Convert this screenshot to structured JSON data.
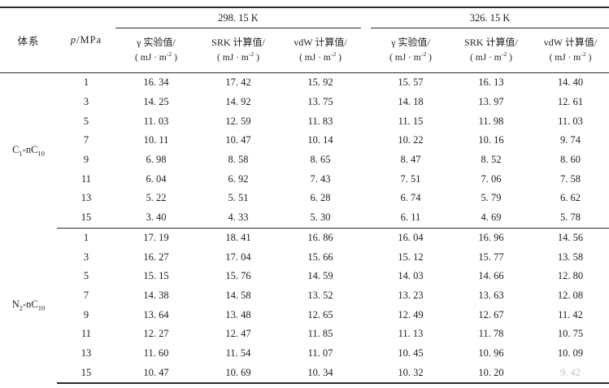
{
  "page": {
    "background": "#ffffff",
    "text_color": "#1d1d1d",
    "rule_color": "#2b2b2b"
  },
  "table": {
    "headers": {
      "system": "体系",
      "pressure": {
        "symbol": "p",
        "unit": "/MPa"
      }
    },
    "temp_groups": [
      {
        "label": "298. 15 K"
      },
      {
        "label": "326. 15 K"
      }
    ],
    "measure_cols": [
      {
        "title": "γ 实验值/"
      },
      {
        "title": "SRK 计算值/"
      },
      {
        "title": "vdW 计算值/"
      }
    ],
    "unit": {
      "pre": "( mJ · m",
      "sup": "-2",
      "post": " )"
    },
    "blocks": [
      {
        "system": {
          "pre": "C",
          "sub1": "1",
          "mid": "-nC",
          "sub2": "10"
        },
        "rows": [
          {
            "p": "1",
            "values": [
              "16. 34",
              "17. 42",
              "15. 92",
              "15. 57",
              "16. 13",
              "14. 40"
            ]
          },
          {
            "p": "3",
            "values": [
              "14. 25",
              "14. 92",
              "13. 75",
              "14. 18",
              "13. 97",
              "12. 61"
            ]
          },
          {
            "p": "5",
            "values": [
              "11. 03",
              "12. 59",
              "11. 83",
              "11. 15",
              "11. 98",
              "11. 03"
            ]
          },
          {
            "p": "7",
            "values": [
              "10. 11",
              "10. 47",
              "10. 14",
              "10. 22",
              "10. 16",
              "9. 74"
            ]
          },
          {
            "p": "9",
            "values": [
              "6. 98",
              "8. 58",
              "8. 65",
              "8. 47",
              "8. 52",
              "8. 60"
            ]
          },
          {
            "p": "11",
            "values": [
              "6. 04",
              "6. 92",
              "7. 43",
              "7. 51",
              "7. 06",
              "7. 58"
            ]
          },
          {
            "p": "13",
            "values": [
              "5. 22",
              "5. 51",
              "6. 28",
              "6. 74",
              "5. 79",
              "6. 62"
            ]
          },
          {
            "p": "15",
            "values": [
              "3. 40",
              "4. 33",
              "5. 30",
              "6. 11",
              "4. 69",
              "5. 78"
            ]
          }
        ]
      },
      {
        "system": {
          "pre": "N",
          "sub1": "2",
          "mid": "-nC",
          "sub2": "10"
        },
        "rows": [
          {
            "p": "1",
            "values": [
              "17. 19",
              "18. 41",
              "16. 86",
              "16. 04",
              "16. 96",
              "14. 56"
            ]
          },
          {
            "p": "3",
            "values": [
              "16. 27",
              "17. 04",
              "15. 66",
              "15. 12",
              "15. 77",
              "13. 58"
            ]
          },
          {
            "p": "5",
            "values": [
              "15. 15",
              "15. 76",
              "14. 59",
              "14. 03",
              "14. 66",
              "12. 80"
            ]
          },
          {
            "p": "7",
            "values": [
              "14. 38",
              "14. 58",
              "13. 52",
              "13. 23",
              "13. 63",
              "12. 08"
            ]
          },
          {
            "p": "9",
            "values": [
              "13. 64",
              "13. 48",
              "12. 65",
              "12. 49",
              "12. 67",
              "11. 42"
            ]
          },
          {
            "p": "11",
            "values": [
              "12. 27",
              "12. 47",
              "11. 85",
              "11. 13",
              "11. 78",
              "10. 75"
            ]
          },
          {
            "p": "13",
            "values": [
              "11. 60",
              "11. 54",
              "11. 07",
              "10. 45",
              "10. 96",
              "10. 09"
            ]
          },
          {
            "p": "15",
            "values": [
              "10. 47",
              "10. 69",
              "10. 34",
              "10. 32",
              "10. 20",
              "9. 42"
            ]
          }
        ]
      }
    ],
    "artifacts": {
      "faded_cell": {
        "block": 1,
        "row": 7,
        "col": 5
      }
    }
  }
}
